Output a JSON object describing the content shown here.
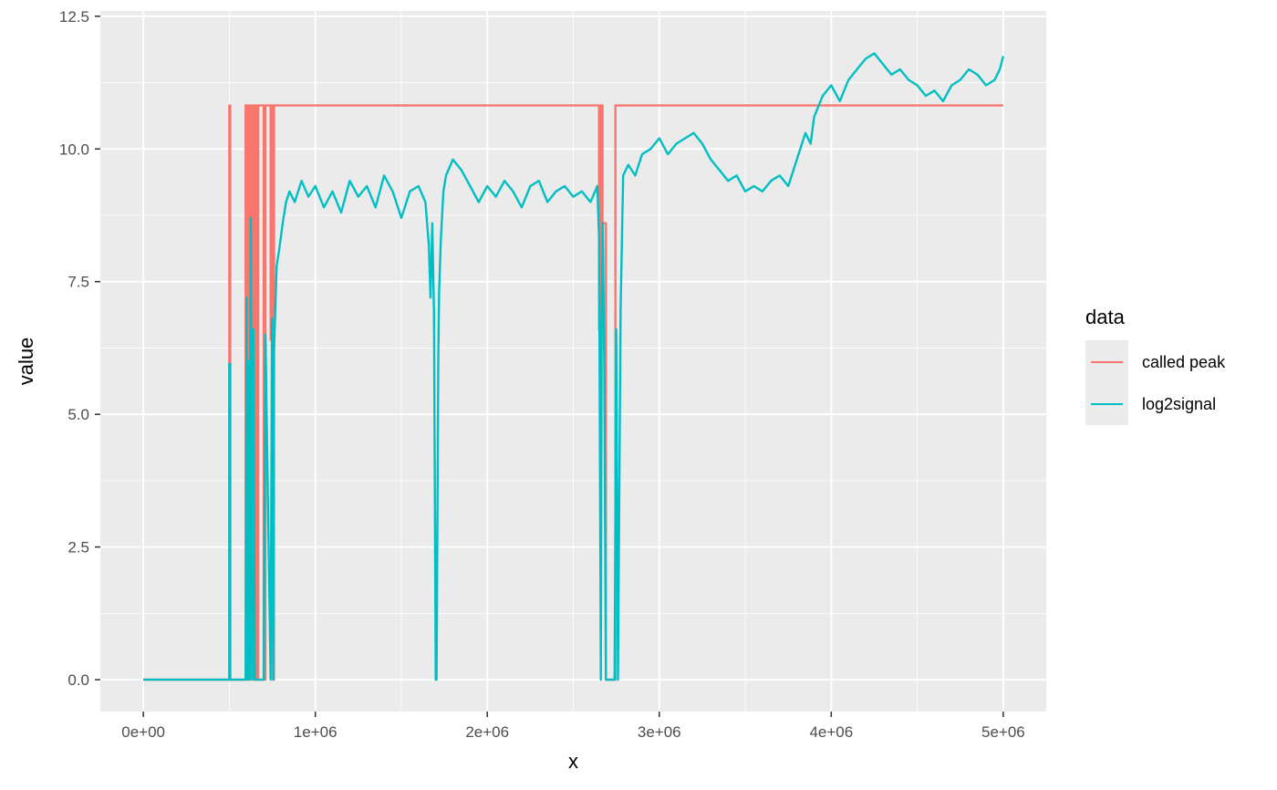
{
  "chart_data": {
    "type": "line",
    "xlabel": "x",
    "ylabel": "value",
    "xlim": [
      -250000,
      5250000
    ],
    "ylim": [
      -0.6,
      12.6
    ],
    "x_ticks": [
      0,
      1000000,
      2000000,
      3000000,
      4000000,
      5000000
    ],
    "x_tick_labels": [
      "0e+00",
      "1e+06",
      "2e+06",
      "3e+06",
      "4e+06",
      "5e+06"
    ],
    "y_ticks": [
      0,
      2.5,
      5,
      7.5,
      10,
      12.5
    ],
    "y_tick_labels": [
      "0.0",
      "2.5",
      "5.0",
      "7.5",
      "10.0",
      "12.5"
    ],
    "grid": true,
    "panel_background": "#ebebeb",
    "legend": {
      "title": "data",
      "position": "right",
      "entries": [
        {
          "label": "called peak",
          "color": "#f8766d"
        },
        {
          "label": "log2signal",
          "color": "#00bfc4"
        }
      ]
    },
    "series": [
      {
        "name": "called peak",
        "color": "#f8766d",
        "x": [
          0,
          490000,
          500000,
          500000,
          505000,
          505000,
          595000,
          595000,
          600000,
          600000,
          605000,
          605000,
          610000,
          610000,
          618000,
          618000,
          625000,
          625000,
          632000,
          632000,
          640000,
          640000,
          648000,
          648000,
          660000,
          660000,
          668000,
          668000,
          700000,
          700000,
          710000,
          710000,
          740000,
          740000,
          748000,
          748000,
          755000,
          755000,
          760000,
          760000,
          2650000,
          2650000,
          2660000,
          2660000,
          2670000,
          2670000,
          2690000,
          2690000,
          2745000,
          2745000,
          5000000
        ],
        "y": [
          0,
          0,
          0,
          10.82,
          10.82,
          0,
          0,
          10.82,
          10.82,
          6.0,
          6.0,
          10.82,
          10.82,
          0,
          0,
          10.82,
          10.82,
          6.2,
          6.2,
          10.82,
          10.82,
          0,
          0,
          10.82,
          10.82,
          0,
          0,
          10.82,
          10.82,
          0,
          0,
          10.82,
          10.82,
          6.4,
          6.4,
          10.82,
          10.82,
          0,
          0,
          10.82,
          10.82,
          6.6,
          6.6,
          10.82,
          10.82,
          8.6,
          8.6,
          0,
          0,
          10.82,
          10.82
        ]
      },
      {
        "name": "log2signal",
        "color": "#00bfc4",
        "x": [
          0,
          490000,
          500000,
          500000,
          505000,
          505000,
          595000,
          600000,
          605000,
          610000,
          618000,
          625000,
          632000,
          640000,
          648000,
          660000,
          668000,
          680000,
          700000,
          710000,
          740000,
          748000,
          755000,
          760000,
          775000,
          790000,
          810000,
          830000,
          850000,
          880000,
          920000,
          960000,
          1000000,
          1050000,
          1100000,
          1150000,
          1200000,
          1250000,
          1300000,
          1350000,
          1400000,
          1450000,
          1500000,
          1550000,
          1600000,
          1640000,
          1660000,
          1670000,
          1680000,
          1690000,
          1700000,
          1705000,
          1715000,
          1720000,
          1730000,
          1745000,
          1760000,
          1800000,
          1850000,
          1900000,
          1950000,
          2000000,
          2050000,
          2100000,
          2150000,
          2200000,
          2250000,
          2300000,
          2350000,
          2400000,
          2450000,
          2500000,
          2550000,
          2600000,
          2640000,
          2650000,
          2660000,
          2665000,
          2672000,
          2680000,
          2690000,
          2700000,
          2740000,
          2750000,
          2760000,
          2775000,
          2790000,
          2820000,
          2860000,
          2900000,
          2950000,
          3000000,
          3050000,
          3100000,
          3150000,
          3200000,
          3250000,
          3300000,
          3350000,
          3400000,
          3450000,
          3500000,
          3550000,
          3600000,
          3650000,
          3700000,
          3750000,
          3800000,
          3850000,
          3880000,
          3900000,
          3950000,
          4000000,
          4050000,
          4100000,
          4150000,
          4200000,
          4250000,
          4300000,
          4350000,
          4400000,
          4450000,
          4500000,
          4550000,
          4600000,
          4650000,
          4700000,
          4750000,
          4800000,
          4850000,
          4900000,
          4950000,
          4980000,
          5000000
        ],
        "y": [
          0,
          0,
          0,
          5.95,
          5.95,
          0,
          0,
          7.2,
          0,
          6.0,
          0,
          8.7,
          0,
          6.6,
          0,
          0,
          0,
          0,
          0,
          6.5,
          0,
          6.8,
          0,
          6.2,
          7.8,
          8.1,
          8.6,
          9.0,
          9.2,
          9.0,
          9.4,
          9.1,
          9.3,
          8.9,
          9.2,
          8.8,
          9.4,
          9.1,
          9.3,
          8.9,
          9.5,
          9.2,
          8.7,
          9.2,
          9.3,
          9.0,
          8.2,
          7.2,
          8.6,
          6.9,
          0,
          0,
          6.0,
          7.3,
          8.3,
          9.2,
          9.5,
          9.8,
          9.6,
          9.3,
          9.0,
          9.3,
          9.1,
          9.4,
          9.2,
          8.9,
          9.3,
          9.4,
          9.0,
          9.2,
          9.3,
          9.1,
          9.2,
          9.0,
          9.3,
          8.3,
          0,
          6.6,
          8.6,
          6.0,
          0,
          0,
          0,
          6.6,
          0,
          7.0,
          9.5,
          9.7,
          9.5,
          9.9,
          10.0,
          10.2,
          9.9,
          10.1,
          10.2,
          10.3,
          10.1,
          9.8,
          9.6,
          9.4,
          9.5,
          9.2,
          9.3,
          9.2,
          9.4,
          9.5,
          9.3,
          9.8,
          10.3,
          10.1,
          10.6,
          11.0,
          11.2,
          10.9,
          11.3,
          11.5,
          11.7,
          11.8,
          11.6,
          11.4,
          11.5,
          11.3,
          11.2,
          11.0,
          11.1,
          10.9,
          11.2,
          11.3,
          11.5,
          11.4,
          11.2,
          11.3,
          11.5,
          11.75
        ]
      }
    ]
  }
}
